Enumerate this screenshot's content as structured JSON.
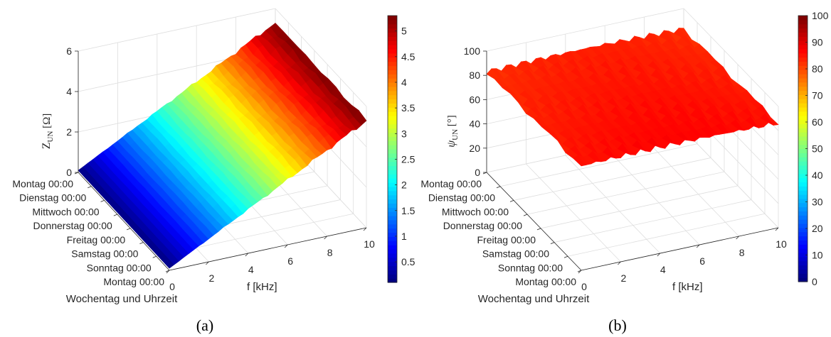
{
  "colors": {
    "colormap": "jet",
    "surface_b_base": "#ee3a1c"
  },
  "chart_data": [
    {
      "type": "surface3d",
      "panel_label": "(a)",
      "zlabel_symbol": "Z",
      "zlabel_sub": "UN",
      "zlabel_unit": "[Ω]",
      "xlabel": "f   [kHz]",
      "ylabel": "Wochentag und Uhrzeit",
      "x_ticks": [
        "0",
        "2",
        "4",
        "6",
        "8",
        "10"
      ],
      "xlim": [
        0,
        10
      ],
      "y_ticks": [
        "Montag 00:00",
        "Dienstag 00:00",
        "Mittwoch 00:00",
        "Donnerstag 00:00",
        "Freitag 00:00",
        "Samstag 00:00",
        "Sonntag 00:00",
        "Montag 00:00"
      ],
      "z_ticks": [
        "0",
        "2",
        "4",
        "6"
      ],
      "zlim": [
        0,
        6
      ],
      "colorbar_ticks": [
        "0.5",
        "1",
        "1.5",
        "2",
        "2.5",
        "3",
        "3.5",
        "4",
        "4.5",
        "5"
      ],
      "colorbar_range": [
        0.1,
        5.3
      ],
      "surface": {
        "z_at_x0": 0.1,
        "z_at_x10": 5.3,
        "trend": "linear in f, nearly constant over time, noisy toward high f"
      }
    },
    {
      "type": "surface3d",
      "panel_label": "(b)",
      "zlabel_symbol": "ψ",
      "zlabel_sub": "UN",
      "zlabel_unit": "[°]",
      "xlabel": "f   [kHz]",
      "ylabel": "Wochentag und Uhrzeit",
      "x_ticks": [
        "0",
        "2",
        "4",
        "6",
        "8",
        "10"
      ],
      "xlim": [
        0,
        10
      ],
      "y_ticks": [
        "Montag 00:00",
        "Dienstag 00:00",
        "Mittwoch 00:00",
        "Donnerstag 00:00",
        "Freitag 00:00",
        "Samstag 00:00",
        "Sonntag 00:00",
        "Montag 00:00"
      ],
      "z_ticks": [
        "0",
        "20",
        "40",
        "60",
        "80",
        "100"
      ],
      "zlim": [
        0,
        100
      ],
      "colorbar_ticks": [
        "0",
        "10",
        "20",
        "30",
        "40",
        "50",
        "60",
        "70",
        "80",
        "90",
        "100"
      ],
      "colorbar_range": [
        0,
        100
      ],
      "surface": {
        "z_min_approx": 80,
        "z_max_approx": 90,
        "trend": "nearly flat around 83-88 degrees"
      }
    }
  ]
}
